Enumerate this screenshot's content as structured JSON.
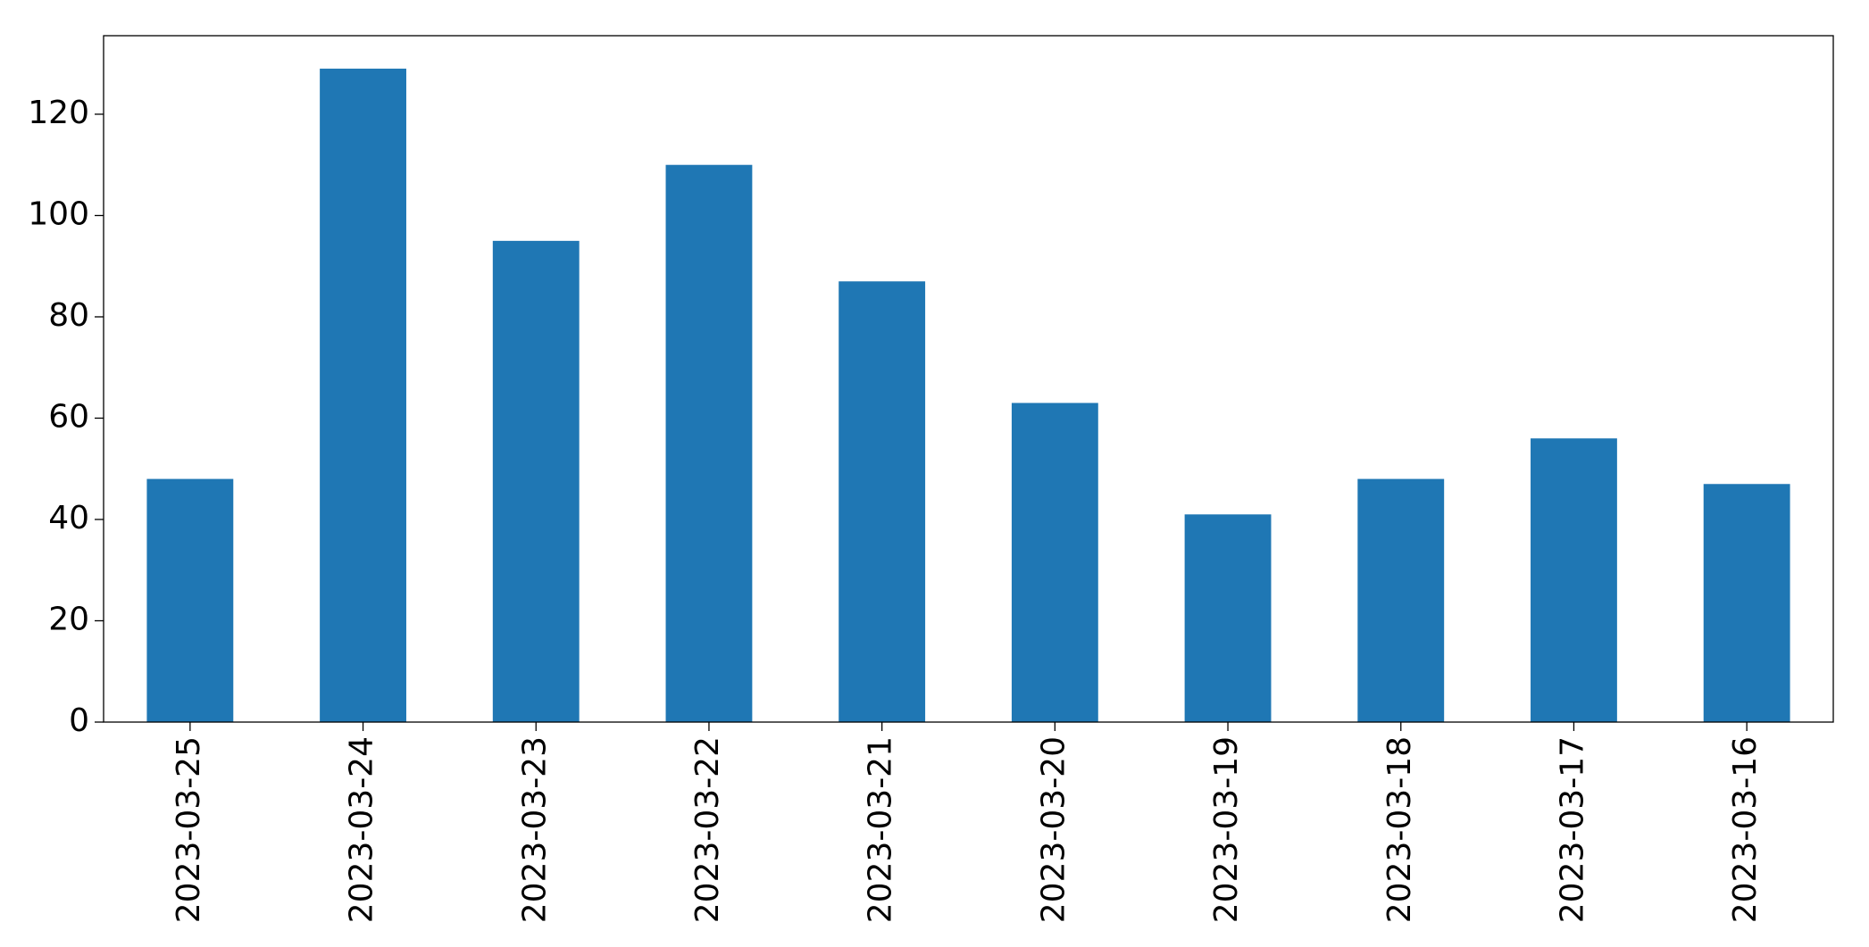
{
  "chart_data": {
    "type": "bar",
    "categories": [
      "2023-03-25",
      "2023-03-24",
      "2023-03-23",
      "2023-03-22",
      "2023-03-21",
      "2023-03-20",
      "2023-03-19",
      "2023-03-18",
      "2023-03-17",
      "2023-03-16"
    ],
    "values": [
      48,
      129,
      95,
      110,
      87,
      63,
      41,
      48,
      56,
      47
    ],
    "color": "#1f77b4",
    "ylim": [
      0,
      135.5
    ],
    "yticks": [
      0,
      20,
      40,
      60,
      80,
      100,
      120
    ],
    "grid": false
  }
}
